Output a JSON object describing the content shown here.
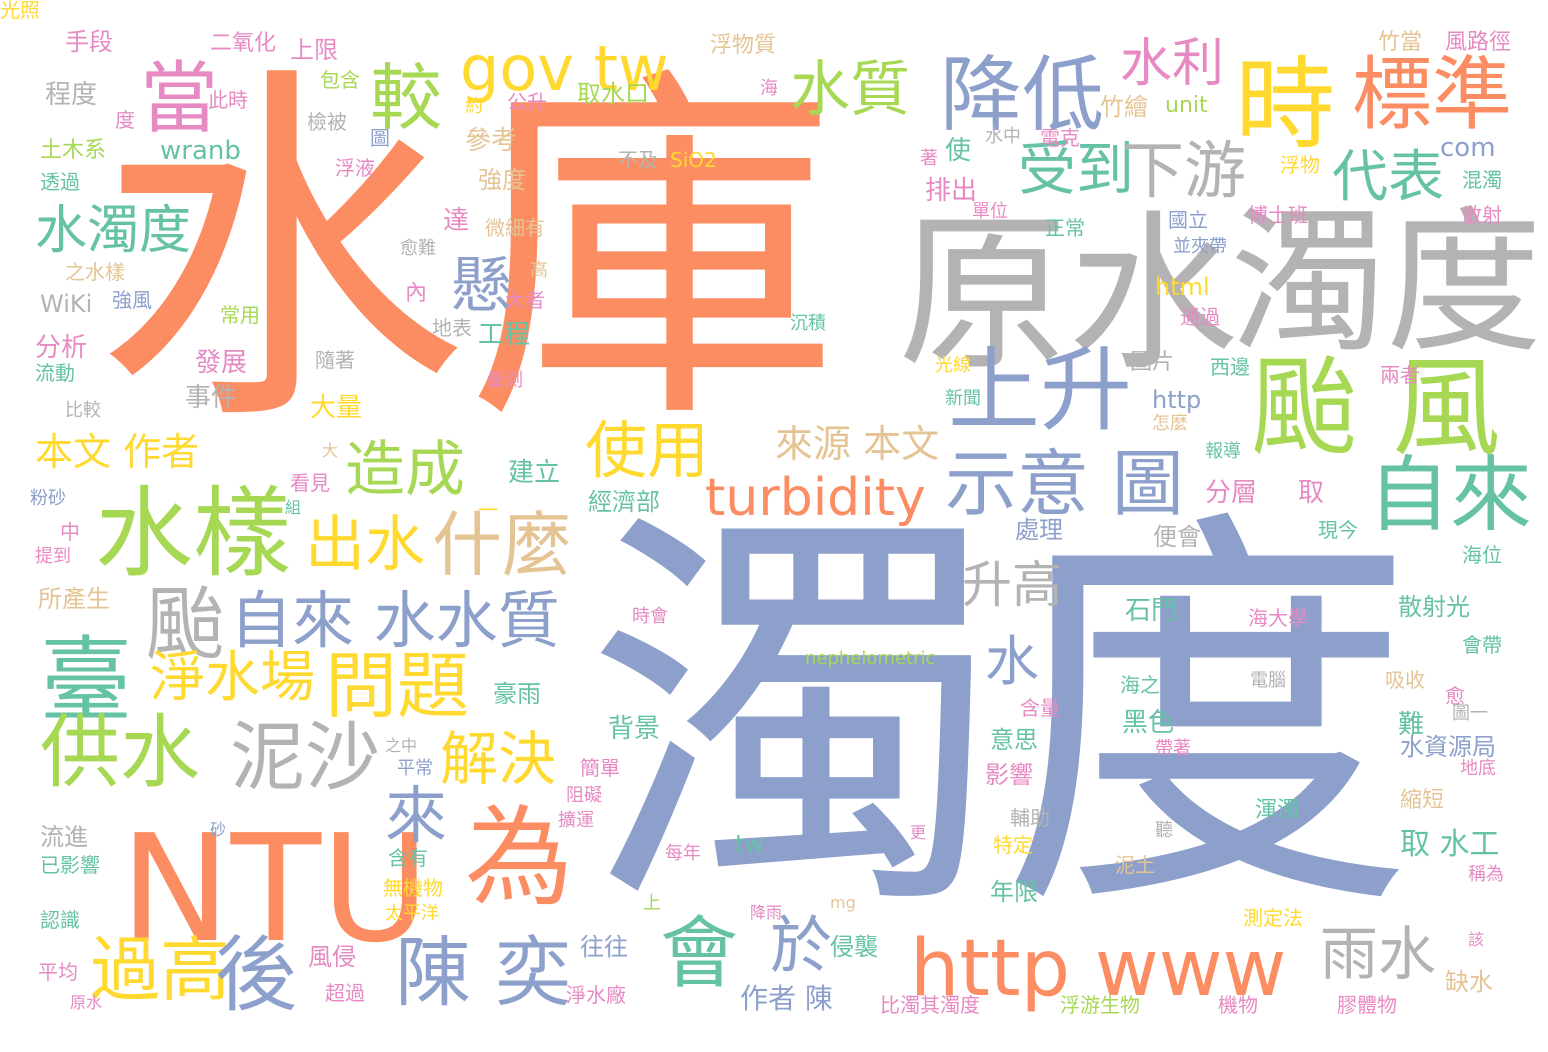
{
  "palette": {
    "orange": "#fc8d62",
    "blue": "#8da0cb",
    "gray": "#b3b3b3",
    "green": "#a6d854",
    "teal": "#66c2a5",
    "yellow": "#ffd92f",
    "pink": "#e78ac3",
    "tan": "#e5c494"
  },
  "words": [
    {
      "text": "水庫",
      "color": "orange"
    },
    {
      "text": "濁度",
      "color": "blue"
    },
    {
      "text": "原水",
      "color": "gray"
    },
    {
      "text": "濁度",
      "color": "gray"
    },
    {
      "text": "時",
      "color": "yellow"
    },
    {
      "text": "標準",
      "color": "orange"
    },
    {
      "text": "降低",
      "color": "blue"
    },
    {
      "text": "gov tw",
      "color": "yellow"
    },
    {
      "text": "水利",
      "color": "pink"
    },
    {
      "text": "較",
      "color": "green"
    },
    {
      "text": "當",
      "color": "pink"
    },
    {
      "text": "水質",
      "color": "green"
    },
    {
      "text": "颱 風",
      "color": "green"
    },
    {
      "text": "上升",
      "color": "blue"
    },
    {
      "text": "受到",
      "color": "teal"
    },
    {
      "text": "下游",
      "color": "gray"
    },
    {
      "text": "代表",
      "color": "teal"
    },
    {
      "text": "自來",
      "color": "teal"
    },
    {
      "text": "示意 圖",
      "color": "blue"
    },
    {
      "text": "水樣",
      "color": "green"
    },
    {
      "text": "懸",
      "color": "blue"
    },
    {
      "text": "造成",
      "color": "green"
    },
    {
      "text": "turbidity",
      "color": "orange"
    },
    {
      "text": "什麼",
      "color": "tan"
    },
    {
      "text": "出水",
      "color": "yellow"
    },
    {
      "text": "水濁度",
      "color": "teal"
    },
    {
      "text": "颱",
      "color": "gray"
    },
    {
      "text": "自來 水水質",
      "color": "blue"
    },
    {
      "text": "升高",
      "color": "gray"
    },
    {
      "text": "臺",
      "color": "teal"
    },
    {
      "text": "淨水場",
      "color": "yellow"
    },
    {
      "text": "問題",
      "color": "yellow"
    },
    {
      "text": "水",
      "color": "blue"
    },
    {
      "text": "供水",
      "color": "green"
    },
    {
      "text": "泥沙",
      "color": "gray"
    },
    {
      "text": "解決",
      "color": "yellow"
    },
    {
      "text": "NTU",
      "color": "orange"
    },
    {
      "text": "為",
      "color": "orange"
    },
    {
      "text": "來",
      "color": "blue"
    },
    {
      "text": "會",
      "color": "teal"
    },
    {
      "text": "於",
      "color": "blue"
    },
    {
      "text": "http www",
      "color": "orange"
    },
    {
      "text": "雨水",
      "color": "gray"
    },
    {
      "text": "過高",
      "color": "yellow"
    },
    {
      "text": "後",
      "color": "blue"
    },
    {
      "text": "陳 奕",
      "color": "blue"
    },
    {
      "text": "使用",
      "color": "yellow"
    },
    {
      "text": "來源 本文",
      "color": "tan"
    },
    {
      "text": "本文 作者",
      "color": "yellow"
    },
    {
      "text": "手段",
      "color": "pink"
    },
    {
      "text": "二氧化",
      "color": "pink"
    },
    {
      "text": "上限",
      "color": "pink"
    },
    {
      "text": "浮物質",
      "color": "tan"
    },
    {
      "text": "竹當",
      "color": "tan"
    },
    {
      "text": "風路徑",
      "color": "pink"
    },
    {
      "text": "程度",
      "color": "gray"
    },
    {
      "text": "此時",
      "color": "pink"
    },
    {
      "text": "包含",
      "color": "green"
    },
    {
      "text": "公升",
      "color": "pink"
    },
    {
      "text": "取水口",
      "color": "green"
    },
    {
      "text": "約",
      "color": "yellow"
    },
    {
      "text": "海",
      "color": "pink"
    },
    {
      "text": "度",
      "color": "pink"
    },
    {
      "text": "檢被",
      "color": "gray"
    },
    {
      "text": "參考",
      "color": "tan"
    },
    {
      "text": "竹繪",
      "color": "tan"
    },
    {
      "text": "unit",
      "color": "green"
    },
    {
      "text": "土木系",
      "color": "green"
    },
    {
      "text": "wranb",
      "color": "teal"
    },
    {
      "text": "圖",
      "color": "blue"
    },
    {
      "text": "水中",
      "color": "gray"
    },
    {
      "text": "電克",
      "color": "pink"
    },
    {
      "text": "com",
      "color": "blue"
    },
    {
      "text": "透過",
      "color": "teal"
    },
    {
      "text": "浮液",
      "color": "pink"
    },
    {
      "text": "強度",
      "color": "tan"
    },
    {
      "text": "不及",
      "color": "gray"
    },
    {
      "text": "SiO2",
      "color": "yellow"
    },
    {
      "text": "著",
      "color": "pink"
    },
    {
      "text": "使",
      "color": "teal"
    },
    {
      "text": "浮物",
      "color": "yellow"
    },
    {
      "text": "混濁",
      "color": "teal"
    },
    {
      "text": "排出",
      "color": "pink"
    },
    {
      "text": "單位",
      "color": "pink"
    },
    {
      "text": "國立",
      "color": "blue"
    },
    {
      "text": "博士班",
      "color": "pink"
    },
    {
      "text": "散射",
      "color": "pink"
    },
    {
      "text": "達",
      "color": "pink"
    },
    {
      "text": "微細有",
      "color": "tan"
    },
    {
      "text": "正常",
      "color": "teal"
    },
    {
      "text": "並夾帶",
      "color": "blue"
    },
    {
      "text": "愈難",
      "color": "gray"
    },
    {
      "text": "之水樣",
      "color": "tan"
    },
    {
      "text": "高",
      "color": "tan"
    },
    {
      "text": "WiKi",
      "color": "gray"
    },
    {
      "text": "強風",
      "color": "blue"
    },
    {
      "text": "大者",
      "color": "pink"
    },
    {
      "text": "html",
      "color": "yellow"
    },
    {
      "text": "常用",
      "color": "green"
    },
    {
      "text": "內",
      "color": "pink"
    },
    {
      "text": "沉積",
      "color": "teal"
    },
    {
      "text": "通過",
      "color": "pink"
    },
    {
      "text": "分析",
      "color": "pink"
    },
    {
      "text": "地表",
      "color": "gray"
    },
    {
      "text": "工程",
      "color": "teal"
    },
    {
      "text": "流動",
      "color": "teal"
    },
    {
      "text": "隨著",
      "color": "gray"
    },
    {
      "text": "圖片",
      "color": "gray"
    },
    {
      "text": "發展",
      "color": "pink"
    },
    {
      "text": "光線",
      "color": "yellow"
    },
    {
      "text": "西邊",
      "color": "teal"
    },
    {
      "text": "量測",
      "color": "pink"
    },
    {
      "text": "兩者",
      "color": "pink"
    },
    {
      "text": "事件",
      "color": "gray"
    },
    {
      "text": "比較",
      "color": "gray"
    },
    {
      "text": "大量",
      "color": "yellow"
    },
    {
      "text": "http",
      "color": "blue"
    },
    {
      "text": "新聞",
      "color": "teal"
    },
    {
      "text": "怎麼",
      "color": "tan"
    },
    {
      "text": "大",
      "color": "tan"
    },
    {
      "text": "報導",
      "color": "teal"
    },
    {
      "text": "看見",
      "color": "pink"
    },
    {
      "text": "建立",
      "color": "teal"
    },
    {
      "text": "分層",
      "color": "pink"
    },
    {
      "text": "取",
      "color": "pink"
    },
    {
      "text": "粉砂",
      "color": "blue"
    },
    {
      "text": "組",
      "color": "teal"
    },
    {
      "text": "經濟部",
      "color": "teal"
    },
    {
      "text": "中",
      "color": "pink"
    },
    {
      "text": "一",
      "color": "yellow"
    },
    {
      "text": "提到",
      "color": "pink"
    },
    {
      "text": "處理",
      "color": "blue"
    },
    {
      "text": "便會",
      "color": "gray"
    },
    {
      "text": "現今",
      "color": "teal"
    },
    {
      "text": "所產生",
      "color": "tan"
    },
    {
      "text": "海位",
      "color": "teal"
    },
    {
      "text": "石門",
      "color": "teal"
    },
    {
      "text": "散射光",
      "color": "teal"
    },
    {
      "text": "時會",
      "color": "pink"
    },
    {
      "text": "海大學",
      "color": "pink"
    },
    {
      "text": "nephelometric",
      "color": "green"
    },
    {
      "text": "會帶",
      "color": "teal"
    },
    {
      "text": "豪雨",
      "color": "teal"
    },
    {
      "text": "含量",
      "color": "pink"
    },
    {
      "text": "電腦",
      "color": "gray"
    },
    {
      "text": "吸收",
      "color": "tan"
    },
    {
      "text": "愈",
      "color": "pink"
    },
    {
      "text": "海之",
      "color": "teal"
    },
    {
      "text": "圖一",
      "color": "gray"
    },
    {
      "text": "背景",
      "color": "teal"
    },
    {
      "text": "黑色",
      "color": "teal"
    },
    {
      "text": "難",
      "color": "teal"
    },
    {
      "text": "之中",
      "color": "gray"
    },
    {
      "text": "意思",
      "color": "teal"
    },
    {
      "text": "水資源局",
      "color": "blue"
    },
    {
      "text": "平常",
      "color": "blue"
    },
    {
      "text": "簡單",
      "color": "pink"
    },
    {
      "text": "帶著",
      "color": "pink"
    },
    {
      "text": "地底",
      "color": "pink"
    },
    {
      "text": "影響",
      "color": "pink"
    },
    {
      "text": "阻礙",
      "color": "pink"
    },
    {
      "text": "縮短",
      "color": "tan"
    },
    {
      "text": "流進",
      "color": "gray"
    },
    {
      "text": "擴運",
      "color": "pink"
    },
    {
      "text": "輔助",
      "color": "gray"
    },
    {
      "text": "渾濁",
      "color": "teal"
    },
    {
      "text": "砂",
      "color": "blue"
    },
    {
      "text": "tw",
      "color": "teal"
    },
    {
      "text": "更",
      "color": "pink"
    },
    {
      "text": "聽",
      "color": "gray"
    },
    {
      "text": "取 水工",
      "color": "teal"
    },
    {
      "text": "已影響",
      "color": "teal"
    },
    {
      "text": "含有",
      "color": "teal"
    },
    {
      "text": "每年",
      "color": "pink"
    },
    {
      "text": "特定",
      "color": "yellow"
    },
    {
      "text": "泥土",
      "color": "tan"
    },
    {
      "text": "稱為",
      "color": "pink"
    },
    {
      "text": "無機物",
      "color": "yellow"
    },
    {
      "text": "年限",
      "color": "teal"
    },
    {
      "text": "上",
      "color": "green"
    },
    {
      "text": "mg",
      "color": "tan"
    },
    {
      "text": "認識",
      "color": "teal"
    },
    {
      "text": "太平洋",
      "color": "yellow"
    },
    {
      "text": "降雨",
      "color": "pink"
    },
    {
      "text": "測定法",
      "color": "yellow"
    },
    {
      "text": "該",
      "color": "pink"
    },
    {
      "text": "往往",
      "color": "blue"
    },
    {
      "text": "侵襲",
      "color": "teal"
    },
    {
      "text": "風侵",
      "color": "pink"
    },
    {
      "text": "平均",
      "color": "pink"
    },
    {
      "text": "缺水",
      "color": "tan"
    },
    {
      "text": "超過",
      "color": "pink"
    },
    {
      "text": "作者 陳",
      "color": "blue"
    },
    {
      "text": "淨水廠",
      "color": "pink"
    },
    {
      "text": "原水",
      "color": "pink"
    },
    {
      "text": "比濁其濁度",
      "color": "pink"
    },
    {
      "text": "浮游生物",
      "color": "green"
    },
    {
      "text": "機物",
      "color": "pink"
    },
    {
      "text": "膠體物",
      "color": "pink"
    },
    {
      "text": "光照",
      "color": "yellow"
    }
  ]
}
